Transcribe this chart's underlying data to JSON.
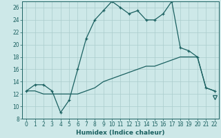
{
  "xlabel": "Humidex (Indice chaleur)",
  "xlim": [
    -0.5,
    22.5
  ],
  "ylim": [
    8,
    27
  ],
  "yticks": [
    8,
    10,
    12,
    14,
    16,
    18,
    20,
    22,
    24,
    26
  ],
  "xticks": [
    0,
    1,
    2,
    3,
    4,
    5,
    6,
    7,
    8,
    9,
    10,
    11,
    12,
    13,
    14,
    15,
    16,
    17,
    18,
    19,
    20,
    21,
    22
  ],
  "xtick_labels": [
    "0",
    "1",
    "2",
    "3",
    "4",
    "5",
    "6",
    "7",
    "8",
    "9",
    "10",
    "11",
    "12",
    "13",
    "14",
    "15",
    "16",
    "17",
    "18",
    "19",
    "20",
    "21",
    "22"
  ],
  "background_color": "#cde8e8",
  "grid_color": "#aacccc",
  "line_color": "#1a6060",
  "humidex_x": [
    0,
    1,
    2,
    3,
    4,
    5,
    6,
    7,
    8,
    9,
    10,
    11,
    12,
    13,
    14,
    15,
    16,
    17,
    18,
    19,
    20,
    21,
    22
  ],
  "humidex_y": [
    12.5,
    13.5,
    13.5,
    12.5,
    9.0,
    11.0,
    16.0,
    21.0,
    24.0,
    25.5,
    27.0,
    26.0,
    25.0,
    25.5,
    24.0,
    24.0,
    25.0,
    27.0,
    19.5,
    19.0,
    18.0,
    13.0,
    12.5
  ],
  "trend_x": [
    0,
    1,
    2,
    3,
    4,
    5,
    6,
    7,
    8,
    9,
    10,
    11,
    12,
    13,
    14,
    15,
    16,
    17,
    18,
    19,
    20,
    21,
    22
  ],
  "trend_y": [
    12.5,
    12.5,
    12.0,
    12.0,
    12.0,
    12.0,
    12.0,
    12.5,
    13.0,
    14.0,
    14.5,
    15.0,
    15.5,
    16.0,
    16.5,
    16.5,
    17.0,
    17.5,
    18.0,
    18.0,
    18.0,
    13.0,
    12.5
  ],
  "triangle_x": 22,
  "triangle_y": 11.5,
  "tick_fontsize": 5.5,
  "xlabel_fontsize": 6.5
}
